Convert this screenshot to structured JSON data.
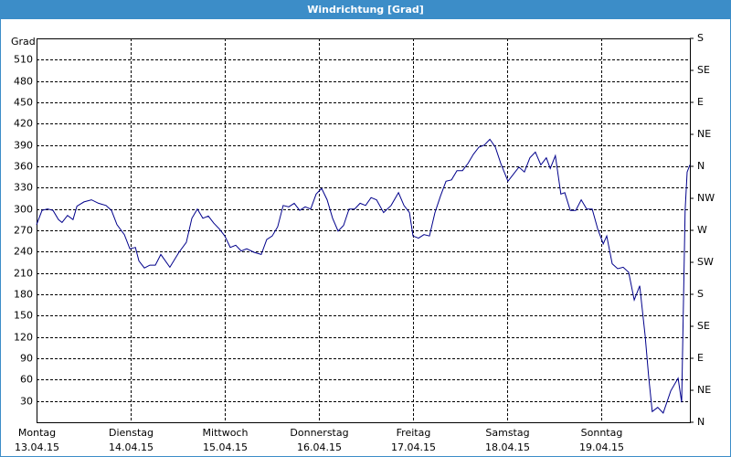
{
  "chart_data": {
    "type": "line",
    "title": "Windrichtung [Grad]",
    "y_label": "Grad",
    "x": [
      0,
      1.4,
      2.8,
      4.2,
      5.6,
      6.5,
      7.9,
      9.3,
      10.3,
      12.1,
      14.0,
      15.8,
      17.7,
      19.1,
      20.5,
      22.4,
      23.8,
      25.2,
      26.1,
      27.5,
      28.9,
      30.3,
      31.7,
      34.0,
      36.3,
      38.2,
      39.6,
      41.0,
      42.4,
      43.8,
      45.2,
      46.6,
      48.0,
      49.4,
      50.8,
      52.2,
      53.6,
      55.5,
      57.3,
      58.7,
      60.1,
      61.5,
      62.9,
      64.3,
      65.7,
      67.1,
      68.5,
      69.9,
      71.3,
      72.7,
      74.1,
      75.5,
      76.9,
      78.3,
      79.7,
      81.1,
      82.5,
      83.9,
      85.3,
      86.7,
      88.5,
      90.4,
      92.3,
      93.7,
      95.1,
      96.0,
      97.4,
      98.8,
      100.2,
      101.6,
      103.0,
      104.4,
      105.8,
      107.2,
      108.6,
      110.0,
      111.4,
      112.8,
      114.2,
      115.6,
      117.0,
      118.4,
      120.2,
      121.6,
      123.0,
      124.4,
      125.8,
      127.2,
      128.6,
      130.0,
      131.0,
      132.3,
      133.7,
      134.7,
      136.1,
      137.5,
      138.9,
      140.3,
      141.7,
      143.1,
      144.5,
      145.4,
      146.8,
      148.2,
      149.6,
      151.0,
      152.4,
      153.8,
      155.2,
      156.1,
      157.0,
      158.4,
      159.8,
      161.7,
      163.6,
      164.5,
      165.4,
      165.9,
      166.6
    ],
    "series": [
      {
        "name": "Windrichtung",
        "color": "#00008b",
        "values": [
          278,
          298,
          300,
          298,
          285,
          281,
          291,
          285,
          304,
          310,
          313,
          308,
          305,
          298,
          278,
          264,
          244,
          246,
          227,
          217,
          221,
          221,
          236,
          218,
          239,
          253,
          287,
          300,
          287,
          290,
          280,
          272,
          262,
          246,
          249,
          241,
          244,
          239,
          236,
          257,
          262,
          275,
          305,
          303,
          308,
          298,
          303,
          300,
          321,
          329,
          313,
          287,
          269,
          277,
          300,
          300,
          308,
          305,
          316,
          313,
          295,
          305,
          323,
          305,
          295,
          262,
          259,
          264,
          262,
          295,
          318,
          339,
          341,
          354,
          354,
          364,
          377,
          387,
          390,
          398,
          387,
          364,
          339,
          349,
          359,
          352,
          372,
          380,
          362,
          372,
          357,
          375,
          321,
          323,
          298,
          298,
          313,
          300,
          300,
          272,
          251,
          262,
          223,
          216,
          218,
          211,
          172,
          192,
          121,
          64,
          15,
          21,
          13,
          44,
          62,
          28,
          298,
          352,
          362
        ]
      }
    ],
    "xlim": [
      0,
      166.6
    ],
    "xticks": [
      {
        "value": 0,
        "label": "Montag",
        "date": "13.04.15"
      },
      {
        "value": 24,
        "label": "Dienstag",
        "date": "14.04.15"
      },
      {
        "value": 48,
        "label": "Mittwoch",
        "date": "15.04.15"
      },
      {
        "value": 72,
        "label": "Donnerstag",
        "date": "16.04.15"
      },
      {
        "value": 96,
        "label": "Freitag",
        "date": "17.04.15"
      },
      {
        "value": 120,
        "label": "Samstag",
        "date": "18.04.15"
      },
      {
        "value": 144,
        "label": "Sonntag",
        "date": "19.04.15"
      }
    ],
    "ylim": [
      0,
      540
    ],
    "yticks": [
      30,
      60,
      90,
      120,
      150,
      180,
      210,
      240,
      270,
      300,
      330,
      360,
      390,
      420,
      450,
      480,
      510
    ],
    "y2lim": [
      0,
      540
    ],
    "y2ticks": [
      {
        "value": 0,
        "label": "N"
      },
      {
        "value": 45,
        "label": "NE"
      },
      {
        "value": 90,
        "label": "E"
      },
      {
        "value": 135,
        "label": "SE"
      },
      {
        "value": 180,
        "label": "S"
      },
      {
        "value": 225,
        "label": "SW"
      },
      {
        "value": 270,
        "label": "W"
      },
      {
        "value": 315,
        "label": "NW"
      },
      {
        "value": 360,
        "label": "N"
      },
      {
        "value": 405,
        "label": "NE"
      },
      {
        "value": 450,
        "label": "E"
      },
      {
        "value": 495,
        "label": "SE"
      },
      {
        "value": 540,
        "label": "S"
      }
    ],
    "grid": true
  }
}
